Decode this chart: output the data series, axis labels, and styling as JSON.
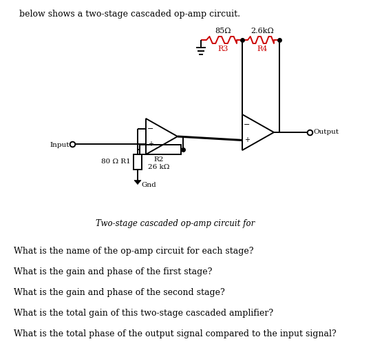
{
  "title_text": "below shows a two-stage cascaded op-amp circuit.",
  "caption": "Two-stage cascaded op-amp circuit for",
  "r1_label": "80 Ω R1",
  "r2_label": "R2\n26 kΩ",
  "r3_label": "R3",
  "r3_value": "85Ω",
  "r4_label": "R4",
  "r4_value": "2.6kΩ",
  "input_label": "Input",
  "output_label": "Output",
  "gnd_label": "Gnd",
  "questions": [
    "What is the name of the op-amp circuit for each stage?",
    "What is the gain and phase of the first stage?",
    "What is the gain and phase of the second stage?",
    "What is the total gain of this two-stage cascaded amplifier?",
    "What is the total phase of the output signal compared to the input signal?"
  ],
  "bg_color": "#ffffff",
  "text_color": "#000000",
  "red_color": "#cc0000",
  "circuit_color": "#000000",
  "figsize": [
    5.42,
    5.18
  ],
  "dpi": 100
}
